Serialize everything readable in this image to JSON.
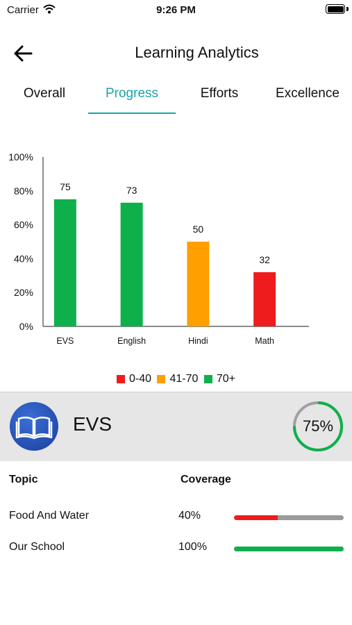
{
  "status_bar": {
    "carrier": "Carrier",
    "time": "9:26 PM"
  },
  "nav": {
    "title": "Learning Analytics"
  },
  "tabs": [
    {
      "label": "Overall",
      "active": false
    },
    {
      "label": "Progress",
      "active": true
    },
    {
      "label": "Efforts",
      "active": false
    },
    {
      "label": "Excellence",
      "active": false
    }
  ],
  "colors": {
    "accent": "#1aa3a8",
    "low": "#ee1c1c",
    "mid": "#ff9f00",
    "high": "#0eb04b"
  },
  "chart_data": {
    "type": "bar",
    "categories": [
      "EVS",
      "English",
      "Hindi",
      "Math"
    ],
    "values": [
      75,
      73,
      50,
      32
    ],
    "value_labels": [
      "75",
      "73",
      "50",
      "32"
    ],
    "bar_colors": [
      "#0eb04b",
      "#0eb04b",
      "#ff9f00",
      "#ee1c1c"
    ],
    "y_ticks": [
      "0%",
      "20%",
      "40%",
      "60%",
      "80%",
      "100%"
    ],
    "ylim": [
      0,
      100
    ],
    "grid": false,
    "legend": [
      {
        "label": "0-40",
        "color": "#ee1c1c"
      },
      {
        "label": "41-70",
        "color": "#ff9f00"
      },
      {
        "label": "70+",
        "color": "#0eb04b"
      }
    ],
    "legend_position": "bottom"
  },
  "subject": {
    "name": "EVS",
    "percent_label": "75%",
    "percent": 75,
    "icon": "book-icon"
  },
  "topics": {
    "header_topic": "Topic",
    "header_coverage": "Coverage",
    "rows": [
      {
        "name": "Food And Water",
        "coverage_label": "40%",
        "coverage": 40,
        "color": "#ee1c1c"
      },
      {
        "name": "Our School",
        "coverage_label": "100%",
        "coverage": 100,
        "color": "#0eb04b"
      }
    ]
  }
}
